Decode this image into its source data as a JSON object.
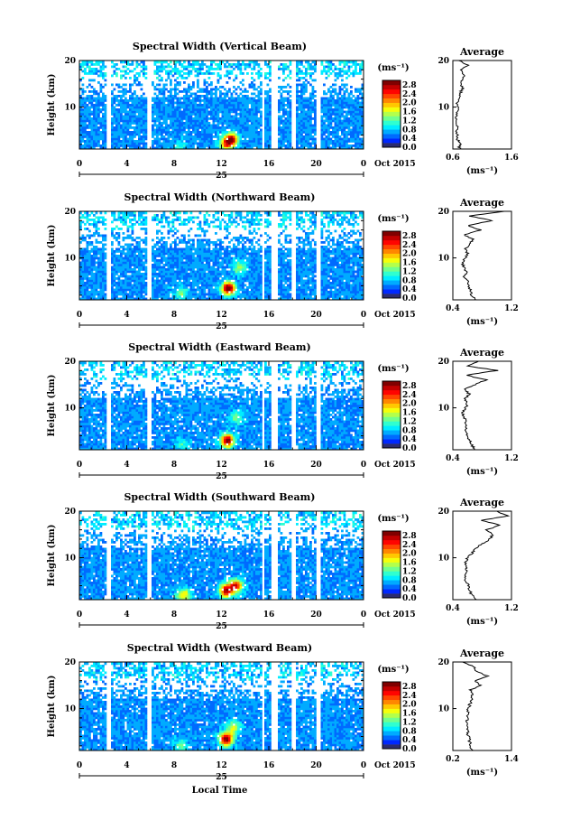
{
  "figure": {
    "bottom_xlabel": "Local Time"
  },
  "chart_data": [
    {
      "type": "heatmap",
      "title": "Spectral Width (Vertical Beam)",
      "ylabel": "Height (km)",
      "xlim": [
        0,
        24
      ],
      "ylim": [
        1,
        20
      ],
      "x_ticks": [
        "0",
        "4",
        "8",
        "12",
        "16",
        "20",
        "0"
      ],
      "y_ticks": [
        "10",
        "20"
      ],
      "date_mark": "25",
      "date_label": "Oct 2015",
      "colorbar": {
        "unit": "(ms⁻¹)",
        "ticks": [
          "0.0",
          "0.4",
          "0.8",
          "1.2",
          "1.6",
          "2.0",
          "2.4",
          "2.8"
        ],
        "range": [
          0,
          3.0
        ]
      },
      "hotspots": [
        {
          "x": 12.8,
          "h": 3,
          "v": 2.8
        },
        {
          "x": 12.3,
          "h": 2,
          "v": 1.6
        },
        {
          "x": 8.5,
          "h": 1.5,
          "v": 0.9
        }
      ],
      "average": {
        "title": "Average",
        "xlabel": "(ms⁻¹)",
        "x_ticks": [
          "0.6",
          "1.6"
        ],
        "y_ticks": [
          "10",
          "20"
        ],
        "xlim": [
          0.6,
          1.6
        ],
        "ylim": [
          1,
          20
        ],
        "height": [
          1,
          2,
          3,
          4,
          5,
          6,
          7,
          8,
          9,
          10,
          11,
          12,
          13,
          14,
          15,
          16,
          17,
          18,
          19,
          20
        ],
        "values": [
          0.7,
          0.72,
          0.68,
          0.67,
          0.66,
          0.68,
          0.67,
          0.66,
          0.67,
          0.68,
          0.68,
          0.7,
          0.72,
          0.78,
          0.72,
          0.75,
          0.8,
          0.72,
          0.85,
          0.7
        ]
      }
    },
    {
      "type": "heatmap",
      "title": "Spectral Width (Northward Beam)",
      "ylabel": "Height (km)",
      "xlim": [
        0,
        24
      ],
      "ylim": [
        1,
        20
      ],
      "x_ticks": [
        "0",
        "4",
        "8",
        "12",
        "16",
        "20",
        "0"
      ],
      "y_ticks": [
        "10",
        "20"
      ],
      "date_mark": "25",
      "date_label": "Oct 2015",
      "colorbar": {
        "unit": "(ms⁻¹)",
        "ticks": [
          "0.0",
          "0.4",
          "0.8",
          "1.2",
          "1.6",
          "2.0",
          "2.4",
          "2.8"
        ],
        "range": [
          0,
          3.0
        ]
      },
      "hotspots": [
        {
          "x": 12.6,
          "h": 3.5,
          "v": 3.0
        },
        {
          "x": 13.5,
          "h": 8,
          "v": 1.3
        },
        {
          "x": 8.6,
          "h": 2.5,
          "v": 1.2
        }
      ],
      "average": {
        "title": "Average",
        "xlabel": "(ms⁻¹)",
        "x_ticks": [
          "0.4",
          "1.2"
        ],
        "y_ticks": [
          "10",
          "20"
        ],
        "xlim": [
          0.4,
          1.2
        ],
        "ylim": [
          1,
          20
        ],
        "height": [
          1,
          2,
          3,
          4,
          5,
          6,
          7,
          8,
          9,
          10,
          11,
          12,
          13,
          14,
          15,
          16,
          17,
          18,
          19,
          20
        ],
        "values": [
          0.72,
          0.66,
          0.64,
          0.62,
          0.6,
          0.56,
          0.58,
          0.55,
          0.52,
          0.58,
          0.6,
          0.58,
          0.62,
          0.68,
          0.55,
          0.78,
          0.6,
          0.95,
          0.62,
          1.1
        ]
      }
    },
    {
      "type": "heatmap",
      "title": "Spectral Width (Eastward Beam)",
      "ylabel": "Height (km)",
      "xlim": [
        0,
        24
      ],
      "ylim": [
        1,
        20
      ],
      "x_ticks": [
        "0",
        "4",
        "8",
        "12",
        "16",
        "20",
        "0"
      ],
      "y_ticks": [
        "10",
        "20"
      ],
      "date_mark": "25",
      "date_label": "Oct 2015",
      "colorbar": {
        "unit": "(ms⁻¹)",
        "ticks": [
          "0.0",
          "0.4",
          "0.8",
          "1.2",
          "1.6",
          "2.0",
          "2.4",
          "2.8"
        ],
        "range": [
          0,
          3.0
        ]
      },
      "hotspots": [
        {
          "x": 12.5,
          "h": 3,
          "v": 2.9
        },
        {
          "x": 13.3,
          "h": 8,
          "v": 1.2
        },
        {
          "x": 8.7,
          "h": 2,
          "v": 1.0
        }
      ],
      "average": {
        "title": "Average",
        "xlabel": "(ms⁻¹)",
        "x_ticks": [
          "0.4",
          "1.2"
        ],
        "y_ticks": [
          "10",
          "20"
        ],
        "xlim": [
          0.4,
          1.2
        ],
        "ylim": [
          1,
          20
        ],
        "height": [
          1,
          2,
          3,
          4,
          5,
          6,
          7,
          8,
          9,
          10,
          11,
          12,
          13,
          14,
          15,
          16,
          17,
          18,
          19,
          20
        ],
        "values": [
          0.7,
          0.66,
          0.63,
          0.6,
          0.58,
          0.57,
          0.58,
          0.55,
          0.54,
          0.58,
          0.6,
          0.57,
          0.62,
          0.55,
          0.7,
          0.85,
          0.58,
          1.0,
          0.6,
          0.75
        ]
      }
    },
    {
      "type": "heatmap",
      "title": "Spectral Width (Southward Beam)",
      "ylabel": "Height (km)",
      "xlim": [
        0,
        24
      ],
      "ylim": [
        1,
        20
      ],
      "x_ticks": [
        "0",
        "4",
        "8",
        "12",
        "16",
        "20",
        "0"
      ],
      "y_ticks": [
        "10",
        "20"
      ],
      "date_mark": "25",
      "date_label": "Oct 2015",
      "colorbar": {
        "unit": "(ms⁻¹)",
        "ticks": [
          "0.0",
          "0.4",
          "0.8",
          "1.2",
          "1.6",
          "2.0",
          "2.4",
          "2.8"
        ],
        "range": [
          0,
          3.0
        ]
      },
      "hotspots": [
        {
          "x": 12.4,
          "h": 3,
          "v": 2.7
        },
        {
          "x": 13.2,
          "h": 4,
          "v": 2.4
        },
        {
          "x": 8.8,
          "h": 2,
          "v": 1.8
        }
      ],
      "average": {
        "title": "Average",
        "xlabel": "(ms⁻¹)",
        "x_ticks": [
          "0.4",
          "1.2"
        ],
        "y_ticks": [
          "10",
          "20"
        ],
        "xlim": [
          0.4,
          1.2
        ],
        "ylim": [
          1,
          20
        ],
        "height": [
          1,
          2,
          3,
          4,
          5,
          6,
          7,
          8,
          9,
          10,
          11,
          12,
          13,
          14,
          15,
          16,
          17,
          18,
          19,
          20
        ],
        "values": [
          0.72,
          0.66,
          0.62,
          0.62,
          0.58,
          0.56,
          0.6,
          0.58,
          0.57,
          0.6,
          0.66,
          0.72,
          0.8,
          0.9,
          0.95,
          0.85,
          1.05,
          0.8,
          1.15,
          1.0
        ]
      }
    },
    {
      "type": "heatmap",
      "title": "Spectral Width (Westward Beam)",
      "ylabel": "Height (km)",
      "xlim": [
        0,
        24
      ],
      "ylim": [
        1,
        20
      ],
      "x_ticks": [
        "0",
        "4",
        "8",
        "12",
        "16",
        "20",
        "0"
      ],
      "y_ticks": [
        "10",
        "20"
      ],
      "date_mark": "25",
      "date_label": "Oct 2015",
      "colorbar": {
        "unit": "(ms⁻¹)",
        "ticks": [
          "0.0",
          "0.4",
          "0.8",
          "1.2",
          "1.6",
          "2.0",
          "2.4",
          "2.8"
        ],
        "range": [
          0,
          3.0
        ]
      },
      "hotspots": [
        {
          "x": 12.4,
          "h": 3.5,
          "v": 3.0
        },
        {
          "x": 13.0,
          "h": 6,
          "v": 1.5
        },
        {
          "x": 8.6,
          "h": 2,
          "v": 1.1
        }
      ],
      "average": {
        "title": "Average",
        "xlabel": "(ms⁻¹)",
        "x_ticks": [
          "0.2",
          "1.4"
        ],
        "y_ticks": [
          "10",
          "20"
        ],
        "xlim": [
          0.2,
          1.4
        ],
        "ylim": [
          1,
          20
        ],
        "height": [
          1,
          2,
          3,
          4,
          5,
          6,
          7,
          8,
          9,
          10,
          11,
          12,
          13,
          14,
          15,
          16,
          17,
          18,
          19,
          20
        ],
        "values": [
          0.6,
          0.56,
          0.54,
          0.52,
          0.5,
          0.48,
          0.5,
          0.49,
          0.5,
          0.52,
          0.55,
          0.58,
          0.6,
          0.55,
          0.78,
          0.65,
          0.9,
          0.7,
          0.62,
          0.4
        ]
      }
    }
  ]
}
